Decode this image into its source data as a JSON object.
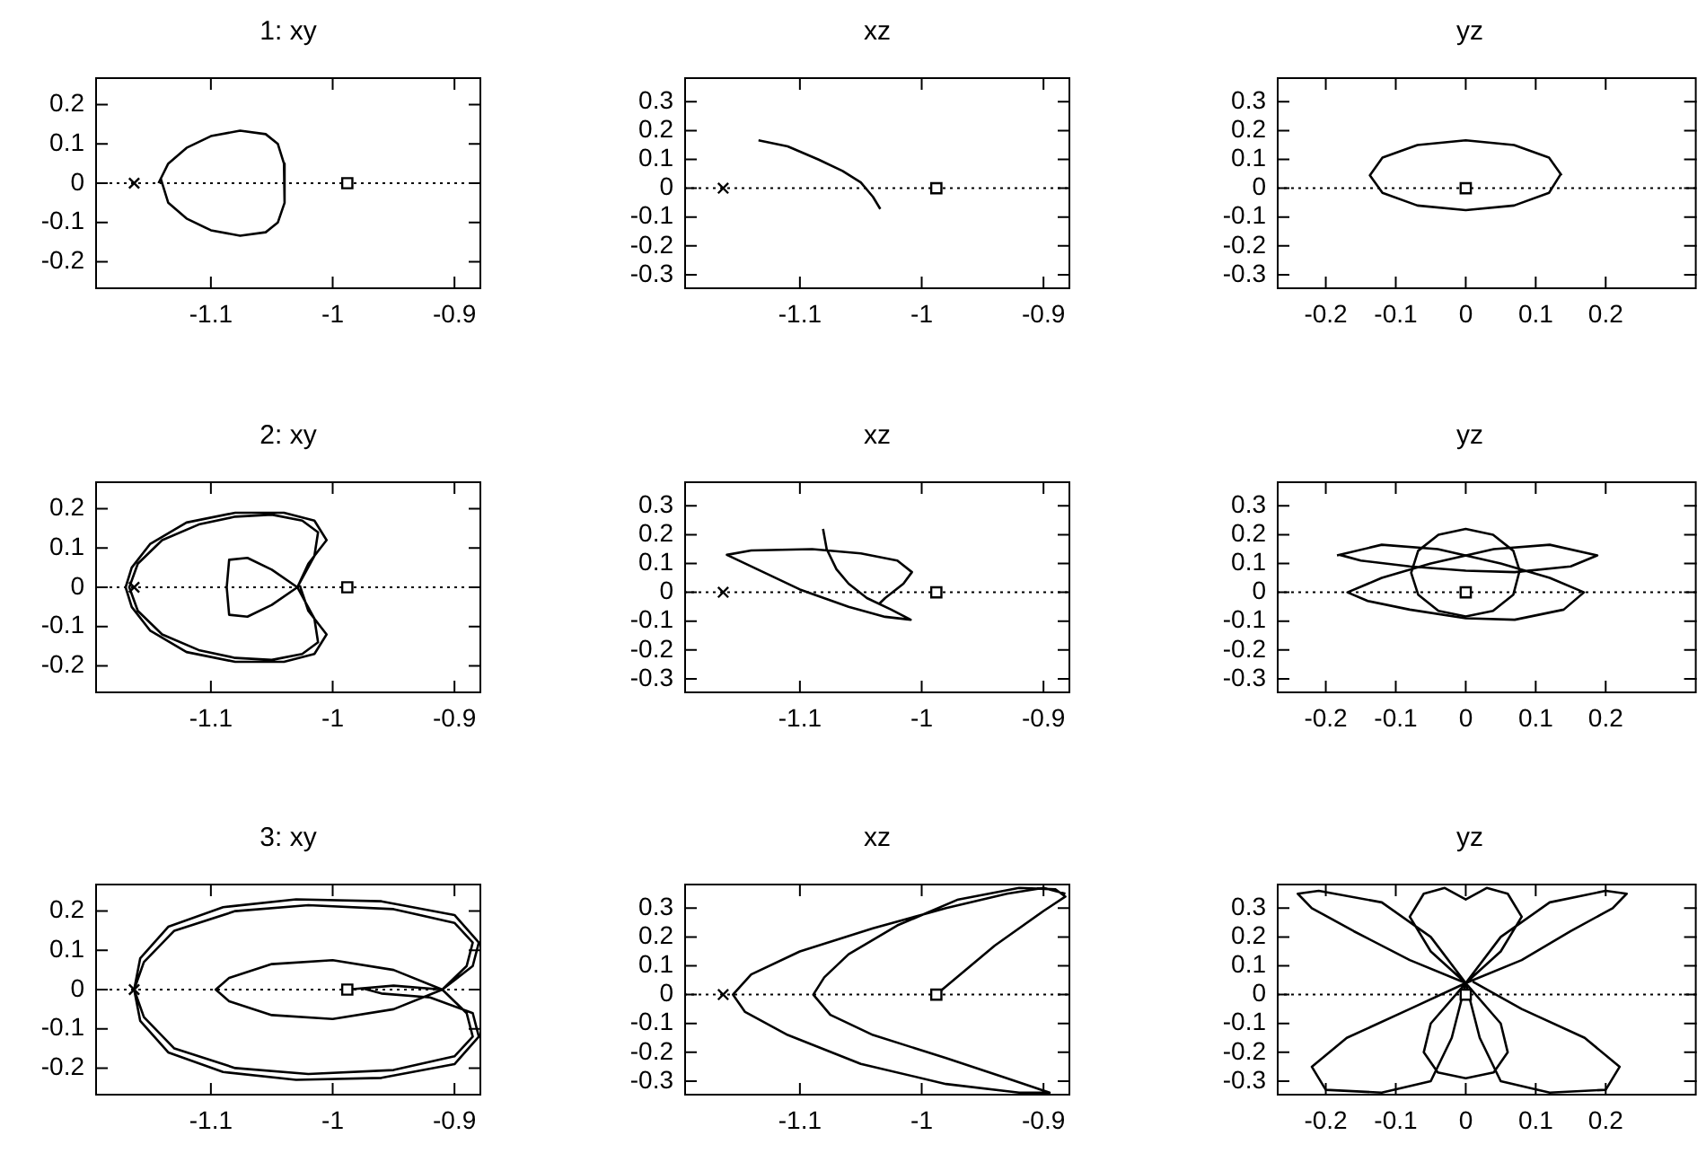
{
  "chart_data": [
    {
      "type": "line",
      "title": "1: xy",
      "xlim": [
        -1.195,
        -0.878
      ],
      "xticks": [
        -1.1,
        -1,
        -0.9
      ],
      "ylim": [
        -0.27,
        0.27
      ],
      "yticks": [
        -0.2,
        -0.1,
        0,
        0.1,
        0.2
      ],
      "ref_lines": [
        {
          "axis": "y",
          "value": 0,
          "line_style": "dotted"
        }
      ],
      "series": [
        {
          "color": "#000000",
          "marker": "none",
          "x": [
            -1.143,
            -1.135,
            -1.12,
            -1.1,
            -1.076,
            -1.055,
            -1.045,
            -1.04,
            -1.039,
            -1.04,
            -1.045,
            -1.055,
            -1.076,
            -1.1,
            -1.12,
            -1.135,
            -1.141
          ],
          "values": [
            0,
            0.05,
            0.09,
            0.12,
            0.134,
            0.125,
            0.1,
            0.05,
            0,
            -0.05,
            -0.1,
            -0.125,
            -0.134,
            -0.12,
            -0.09,
            -0.05,
            0.01
          ]
        },
        {
          "type": "scatter",
          "color": "#000000",
          "marker": "cross",
          "x": [
            -1.163
          ],
          "values": [
            0
          ]
        },
        {
          "type": "scatter",
          "color": "#000000",
          "marker": "square",
          "x": [
            -0.988
          ],
          "values": [
            0
          ]
        }
      ]
    },
    {
      "type": "line",
      "title": "xz",
      "xlim": [
        -1.195,
        -0.878
      ],
      "xticks": [
        -1.1,
        -1,
        -0.9
      ],
      "ylim": [
        -0.35,
        0.385
      ],
      "yticks": [
        -0.3,
        -0.2,
        -0.1,
        0,
        0.1,
        0.2,
        0.3
      ],
      "ref_lines": [
        {
          "axis": "y",
          "value": 0,
          "line_style": "dotted"
        }
      ],
      "series": [
        {
          "color": "#000000",
          "marker": "none",
          "x": [
            -1.134,
            -1.11,
            -1.085,
            -1.065,
            -1.05,
            -1.04,
            -1.034
          ],
          "values": [
            0.166,
            0.145,
            0.1,
            0.06,
            0.02,
            -0.03,
            -0.072
          ]
        },
        {
          "type": "scatter",
          "color": "#000000",
          "marker": "cross",
          "x": [
            -1.163
          ],
          "values": [
            0
          ]
        },
        {
          "type": "scatter",
          "color": "#000000",
          "marker": "square",
          "x": [
            -0.988
          ],
          "values": [
            0
          ]
        }
      ]
    },
    {
      "type": "line",
      "title": "yz",
      "xlim": [
        -0.27,
        0.33
      ],
      "xticks": [
        -0.2,
        -0.1,
        0,
        0.1,
        0.2
      ],
      "ylim": [
        -0.35,
        0.385
      ],
      "yticks": [
        -0.3,
        -0.2,
        -0.1,
        0,
        0.1,
        0.2,
        0.3
      ],
      "ref_lines": [
        {
          "axis": "y",
          "value": 0,
          "line_style": "dotted"
        }
      ],
      "series": [
        {
          "color": "#000000",
          "marker": "none",
          "x": [
            0.137,
            0.119,
            0.069,
            0,
            -0.069,
            -0.119,
            -0.137,
            -0.119,
            -0.069,
            0,
            0.069,
            0.119,
            0.136
          ],
          "values": [
            0.045,
            0.106,
            0.15,
            0.166,
            0.15,
            0.106,
            0.045,
            -0.016,
            -0.06,
            -0.076,
            -0.06,
            -0.016,
            0.05
          ]
        },
        {
          "type": "scatter",
          "color": "#000000",
          "marker": "square",
          "x": [
            0
          ],
          "values": [
            0
          ]
        }
      ]
    },
    {
      "type": "line",
      "title": "2: xy",
      "xlim": [
        -1.195,
        -0.878
      ],
      "xticks": [
        -1.1,
        -1,
        -0.9
      ],
      "ylim": [
        -0.27,
        0.27
      ],
      "yticks": [
        -0.2,
        -0.1,
        0,
        0.1,
        0.2
      ],
      "ref_lines": [
        {
          "axis": "y",
          "value": 0,
          "line_style": "dotted"
        }
      ],
      "series": [
        {
          "color": "#000000",
          "marker": "none",
          "x": [
            -1.029,
            -1.015,
            -1.012,
            -1.025,
            -1.05,
            -1.08,
            -1.11,
            -1.14,
            -1.16,
            -1.167,
            -1.16,
            -1.14,
            -1.11,
            -1.08,
            -1.05,
            -1.025,
            -1.012,
            -1.015,
            -1.029,
            -1.05,
            -1.07,
            -1.085,
            -1.087,
            -1.085,
            -1.07,
            -1.05,
            -1.029,
            -1.02,
            -1.005,
            -1.015,
            -1.04,
            -1.08,
            -1.12,
            -1.15,
            -1.165,
            -1.17,
            -1.165,
            -1.15,
            -1.12,
            -1.08,
            -1.04,
            -1.015,
            -1.005,
            -1.02,
            -1.027
          ],
          "values": [
            0,
            0.08,
            0.14,
            0.17,
            0.185,
            0.18,
            0.16,
            0.12,
            0.06,
            0,
            -0.06,
            -0.12,
            -0.16,
            -0.18,
            -0.185,
            -0.17,
            -0.14,
            -0.08,
            0,
            0.045,
            0.075,
            0.07,
            0,
            -0.07,
            -0.075,
            -0.045,
            0,
            0.06,
            0.12,
            0.17,
            0.19,
            0.19,
            0.165,
            0.11,
            0.05,
            0,
            -0.05,
            -0.11,
            -0.165,
            -0.19,
            -0.19,
            -0.17,
            -0.12,
            -0.06,
            0.005
          ]
        },
        {
          "type": "scatter",
          "color": "#000000",
          "marker": "cross",
          "x": [
            -1.163
          ],
          "values": [
            0
          ]
        },
        {
          "type": "scatter",
          "color": "#000000",
          "marker": "square",
          "x": [
            -0.988
          ],
          "values": [
            0
          ]
        }
      ]
    },
    {
      "type": "line",
      "title": "xz",
      "xlim": [
        -1.195,
        -0.878
      ],
      "xticks": [
        -1.1,
        -1,
        -0.9
      ],
      "ylim": [
        -0.35,
        0.385
      ],
      "yticks": [
        -0.3,
        -0.2,
        -0.1,
        0,
        0.1,
        0.2,
        0.3
      ],
      "ref_lines": [
        {
          "axis": "y",
          "value": 0,
          "line_style": "dotted"
        }
      ],
      "series": [
        {
          "color": "#000000",
          "marker": "none",
          "x": [
            -1.081,
            -1.078,
            -1.07,
            -1.06,
            -1.045,
            -1.025,
            -1.009,
            -1.03,
            -1.06,
            -1.1,
            -1.13,
            -1.16,
            -1.14,
            -1.09,
            -1.05,
            -1.02,
            -1.008,
            -1.015,
            -1.03,
            -1.035
          ],
          "values": [
            0.22,
            0.15,
            0.08,
            0.03,
            -0.02,
            -0.06,
            -0.095,
            -0.085,
            -0.05,
            0.01,
            0.07,
            0.13,
            0.145,
            0.15,
            0.135,
            0.11,
            0.07,
            0.03,
            -0.02,
            -0.04
          ]
        },
        {
          "type": "scatter",
          "color": "#000000",
          "marker": "cross",
          "x": [
            -1.163
          ],
          "values": [
            0
          ]
        },
        {
          "type": "scatter",
          "color": "#000000",
          "marker": "square",
          "x": [
            -0.988
          ],
          "values": [
            0
          ]
        }
      ]
    },
    {
      "type": "line",
      "title": "yz",
      "xlim": [
        -0.27,
        0.33
      ],
      "xticks": [
        -0.2,
        -0.1,
        0,
        0.1,
        0.2
      ],
      "ylim": [
        -0.35,
        0.385
      ],
      "yticks": [
        -0.3,
        -0.2,
        -0.1,
        0,
        0.1,
        0.2,
        0.3
      ],
      "ref_lines": [
        {
          "axis": "y",
          "value": 0,
          "line_style": "dotted"
        }
      ],
      "series": [
        {
          "color": "#000000",
          "marker": "none",
          "x": [
            0.078,
            0.068,
            0.039,
            0,
            -0.039,
            -0.068,
            -0.078,
            -0.068,
            -0.039,
            0,
            0.039,
            0.068,
            0.077
          ],
          "values": [
            0.068,
            0.144,
            0.2,
            0.22,
            0.2,
            0.144,
            0.068,
            -0.008,
            -0.064,
            -0.084,
            -0.064,
            -0.008,
            0.075
          ]
        },
        {
          "color": "#000000",
          "marker": "none",
          "x": [
            -0.184,
            -0.12,
            -0.04,
            0.05,
            0.12,
            0.169,
            0.14,
            0.07,
            0,
            -0.08,
            -0.14,
            -0.169,
            -0.12,
            -0.05,
            0.04,
            0.12,
            0.188,
            0.15,
            0.07,
            0,
            -0.08,
            -0.15,
            -0.18
          ],
          "values": [
            0.128,
            0.165,
            0.15,
            0.1,
            0.05,
            0,
            -0.06,
            -0.095,
            -0.09,
            -0.06,
            -0.03,
            0,
            0.05,
            0.1,
            0.15,
            0.165,
            0.128,
            0.09,
            0.07,
            0.075,
            0.09,
            0.11,
            0.13
          ]
        },
        {
          "type": "scatter",
          "color": "#000000",
          "marker": "square",
          "x": [
            0
          ],
          "values": [
            0
          ]
        }
      ]
    },
    {
      "type": "line",
      "title": "3: xy",
      "xlim": [
        -1.195,
        -0.878
      ],
      "xticks": [
        -1.1,
        -1,
        -0.9
      ],
      "ylim": [
        -0.27,
        0.27
      ],
      "yticks": [
        -0.2,
        -0.1,
        0,
        0.1,
        0.2
      ],
      "ref_lines": [
        {
          "axis": "y",
          "value": 0,
          "line_style": "dotted"
        }
      ],
      "series": [
        {
          "color": "#000000",
          "marker": "none",
          "x": [
            -0.988,
            -0.95,
            -0.91,
            -0.89,
            -0.885,
            -0.9,
            -0.95,
            -1.02,
            -1.08,
            -1.13,
            -1.155,
            -1.163,
            -1.155,
            -1.13,
            -1.08,
            -1.02,
            -0.95,
            -0.9,
            -0.885,
            -0.89,
            -0.91,
            -0.95,
            -1.0,
            -1.05,
            -1.085,
            -1.096,
            -1.085,
            -1.05,
            -1.0,
            -0.95,
            -0.91,
            -0.885,
            -0.88,
            -0.9,
            -0.96,
            -1.03,
            -1.09,
            -1.135,
            -1.158,
            -1.163,
            -1.158,
            -1.135,
            -1.09,
            -1.03,
            -0.96,
            -0.9,
            -0.88,
            -0.885,
            -0.92,
            -0.96,
            -0.975
          ],
          "values": [
            0,
            0.01,
            0,
            0.06,
            0.12,
            0.17,
            0.205,
            0.215,
            0.2,
            0.15,
            0.07,
            0,
            -0.07,
            -0.15,
            -0.2,
            -0.215,
            -0.205,
            -0.17,
            -0.12,
            -0.06,
            0,
            0.05,
            0.075,
            0.065,
            0.03,
            0,
            -0.03,
            -0.065,
            -0.075,
            -0.05,
            0,
            0.06,
            0.12,
            0.19,
            0.225,
            0.23,
            0.21,
            0.16,
            0.08,
            0,
            -0.08,
            -0.16,
            -0.21,
            -0.23,
            -0.225,
            -0.19,
            -0.12,
            -0.06,
            -0.02,
            -0.01,
            0.003
          ]
        },
        {
          "type": "scatter",
          "color": "#000000",
          "marker": "cross",
          "x": [
            -1.163
          ],
          "values": [
            0
          ]
        },
        {
          "type": "scatter",
          "color": "#000000",
          "marker": "square",
          "x": [
            -0.988
          ],
          "values": [
            0
          ]
        }
      ]
    },
    {
      "type": "line",
      "title": "xz",
      "xlim": [
        -1.195,
        -0.878
      ],
      "xticks": [
        -1.1,
        -1,
        -0.9
      ],
      "ylim": [
        -0.35,
        0.385
      ],
      "yticks": [
        -0.3,
        -0.2,
        -0.1,
        0,
        0.1,
        0.2,
        0.3
      ],
      "ref_lines": [
        {
          "axis": "y",
          "value": 0,
          "line_style": "dotted"
        }
      ],
      "series": [
        {
          "color": "#000000",
          "marker": "none",
          "x": [
            -0.988,
            -0.94,
            -0.9,
            -0.882,
            -0.89,
            -0.92,
            -0.97,
            -1.02,
            -1.06,
            -1.08,
            -1.089,
            -1.075,
            -1.04,
            -0.98,
            -0.93,
            -0.895,
            -0.92,
            -0.98,
            -1.05,
            -1.11,
            -1.145,
            -1.155,
            -1.14,
            -1.1,
            -1.04,
            -0.98,
            -0.93,
            -0.9,
            -0.882
          ],
          "values": [
            0,
            0.17,
            0.29,
            0.34,
            0.365,
            0.37,
            0.33,
            0.24,
            0.14,
            0.06,
            0,
            -0.07,
            -0.14,
            -0.22,
            -0.29,
            -0.34,
            -0.34,
            -0.31,
            -0.24,
            -0.14,
            -0.06,
            0,
            0.07,
            0.15,
            0.23,
            0.3,
            0.35,
            0.37,
            0.35
          ]
        },
        {
          "type": "scatter",
          "color": "#000000",
          "marker": "cross",
          "x": [
            -1.163
          ],
          "values": [
            0
          ]
        },
        {
          "type": "scatter",
          "color": "#000000",
          "marker": "square",
          "x": [
            -0.988
          ],
          "values": [
            0
          ]
        }
      ]
    },
    {
      "type": "line",
      "title": "yz",
      "xlim": [
        -0.27,
        0.33
      ],
      "xticks": [
        -0.2,
        -0.1,
        0,
        0.1,
        0.2
      ],
      "ylim": [
        -0.35,
        0.385
      ],
      "yticks": [
        -0.3,
        -0.2,
        -0.1,
        0,
        0.1,
        0.2,
        0.3
      ],
      "ref_lines": [
        {
          "axis": "y",
          "value": 0,
          "line_style": "dotted"
        }
      ],
      "series": [
        {
          "color": "#000000",
          "marker": "none",
          "x": [
            0,
            -0.08,
            -0.16,
            -0.22,
            -0.24,
            -0.21,
            -0.12,
            -0.05,
            0,
            -0.05,
            -0.08,
            -0.06,
            -0.03,
            0,
            0.03,
            0.06,
            0.08,
            0.05,
            0,
            0.05,
            0.12,
            0.2,
            0.23,
            0.21,
            0.15,
            0.08,
            0,
            -0.08,
            -0.17,
            -0.22,
            -0.2,
            -0.12,
            -0.05,
            -0.02,
            0,
            -0.05,
            -0.06,
            -0.04,
            0,
            0.04,
            0.06,
            0.05,
            0,
            0.02,
            0.05,
            0.12,
            0.2,
            0.22,
            0.17,
            0.08,
            0.01
          ],
          "values": [
            0.04,
            0.12,
            0.22,
            0.3,
            0.35,
            0.36,
            0.32,
            0.2,
            0.04,
            0.15,
            0.27,
            0.35,
            0.37,
            0.33,
            0.37,
            0.35,
            0.27,
            0.15,
            0.04,
            0.2,
            0.32,
            0.36,
            0.35,
            0.3,
            0.22,
            0.12,
            0.04,
            -0.05,
            -0.15,
            -0.25,
            -0.33,
            -0.34,
            -0.3,
            -0.15,
            0.04,
            -0.1,
            -0.2,
            -0.27,
            -0.29,
            -0.27,
            -0.2,
            -0.1,
            0.04,
            -0.15,
            -0.3,
            -0.34,
            -0.33,
            -0.25,
            -0.15,
            -0.05,
            0.045
          ]
        },
        {
          "type": "scatter",
          "color": "#000000",
          "marker": "square",
          "x": [
            0
          ],
          "values": [
            0
          ]
        }
      ]
    }
  ]
}
